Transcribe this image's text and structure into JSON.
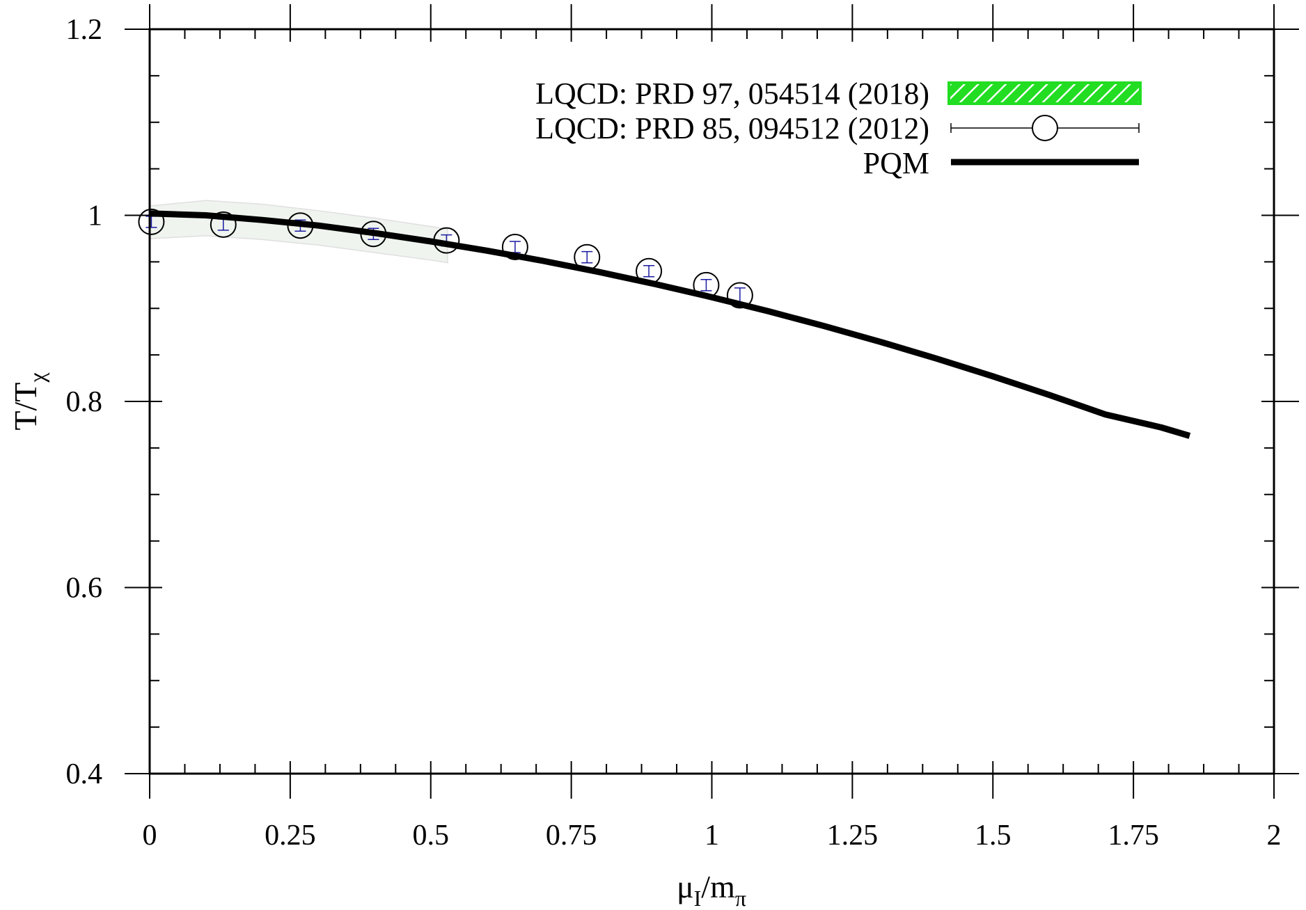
{
  "chart_data": {
    "type": "line",
    "xlabel": {
      "main": "μ",
      "sub1": "I",
      "mid": "/m",
      "sub2": "π"
    },
    "ylabel": {
      "main": "T/T",
      "sub": "χ"
    },
    "xlim": [
      0,
      2
    ],
    "ylim": [
      0.4,
      1.2
    ],
    "x_ticks": [
      0,
      0.25,
      0.5,
      0.75,
      1,
      1.25,
      1.5,
      1.75,
      2
    ],
    "x_tick_labels": [
      "0",
      "0.25",
      "0.5",
      "0.75",
      "1",
      "1.25",
      "1.5",
      "1.75",
      "2"
    ],
    "y_ticks": [
      0.4,
      0.6,
      0.8,
      1,
      1.2
    ],
    "y_tick_labels": [
      "0.4",
      "0.6",
      "0.8",
      "1",
      "1.2"
    ],
    "minor_ticks": {
      "x_step": 0.0625,
      "y_step": 0.05
    },
    "grid": false,
    "legend_position": "top-right",
    "series": [
      {
        "name": "LQCD: PRD 97, 054514 (2018)",
        "kind": "band",
        "color": "#22dd22",
        "x": [
          0,
          0.1,
          0.2,
          0.3,
          0.4,
          0.5,
          0.53
        ],
        "upper": [
          1.01,
          1.016,
          1.012,
          1.005,
          0.997,
          0.988,
          0.985
        ],
        "lower": [
          0.975,
          0.978,
          0.974,
          0.968,
          0.96,
          0.952,
          0.949
        ]
      },
      {
        "name": "LQCD: PRD 85, 094512 (2012)",
        "kind": "points",
        "color": "#000000",
        "error_color": "#1a1aa0",
        "x": [
          0.003,
          0.131,
          0.268,
          0.398,
          0.528,
          0.65,
          0.778,
          0.888,
          0.99,
          1.05
        ],
        "y": [
          0.993,
          0.99,
          0.989,
          0.98,
          0.973,
          0.966,
          0.955,
          0.94,
          0.925,
          0.914
        ],
        "err": [
          0.006,
          0.006,
          0.006,
          0.006,
          0.006,
          0.006,
          0.006,
          0.006,
          0.006,
          0.008
        ]
      },
      {
        "name": "PQM",
        "kind": "line",
        "color": "#000000",
        "x": [
          0,
          0.1,
          0.2,
          0.3,
          0.4,
          0.5,
          0.6,
          0.7,
          0.8,
          0.9,
          1.0,
          1.1,
          1.2,
          1.3,
          1.4,
          1.5,
          1.6,
          1.7,
          1.8,
          1.85
        ],
        "y": [
          1.002,
          1.0,
          0.995,
          0.989,
          0.981,
          0.972,
          0.962,
          0.951,
          0.939,
          0.926,
          0.912,
          0.897,
          0.881,
          0.864,
          0.846,
          0.827,
          0.807,
          0.786,
          0.772,
          0.763
        ]
      }
    ]
  }
}
